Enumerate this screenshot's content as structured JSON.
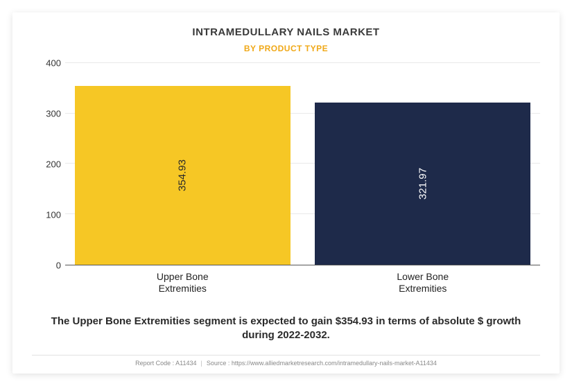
{
  "title": {
    "text": "INTRAMEDULLARY NAILS MARKET",
    "fontsize": 15,
    "color": "#3a3a3a"
  },
  "subtitle": {
    "text": "BY PRODUCT TYPE",
    "fontsize": 12,
    "color": "#f0a817"
  },
  "chart": {
    "type": "bar",
    "ylim": [
      0,
      400
    ],
    "ytick_step": 100,
    "yticks": [
      0,
      100,
      200,
      300,
      400
    ],
    "axis_color": "#555555",
    "grid_color": "#e9e9e9",
    "tick_font_color": "#333333",
    "tick_fontsize": 13,
    "background_color": "#ffffff",
    "bar_width": 0.92,
    "categories": [
      {
        "label_line1": "Upper Bone",
        "label_line2": "Extremities",
        "value": 354.93,
        "value_text": "354.93",
        "bar_color": "#f6c725",
        "value_color": "#2a2a2a"
      },
      {
        "label_line1": "Lower Bone",
        "label_line2": "Extremities",
        "value": 321.97,
        "value_text": "321.97",
        "bar_color": "#1e2a4a",
        "value_color": "#ffffff"
      }
    ],
    "xlabel_fontsize": 14,
    "xlabel_color": "#222222"
  },
  "caption": {
    "text": "The Upper Bone Extremities segment is expected to gain $354.93 in terms of absolute $ growth during 2022-2032.",
    "fontsize": 15,
    "color": "#2a2a2a"
  },
  "footer": {
    "report_code": "Report Code : A11434",
    "source": "Source : https://www.alliedmarketresearch.com/intramedullary-nails-market-A11434",
    "color": "#888888",
    "fontsize": 9
  }
}
